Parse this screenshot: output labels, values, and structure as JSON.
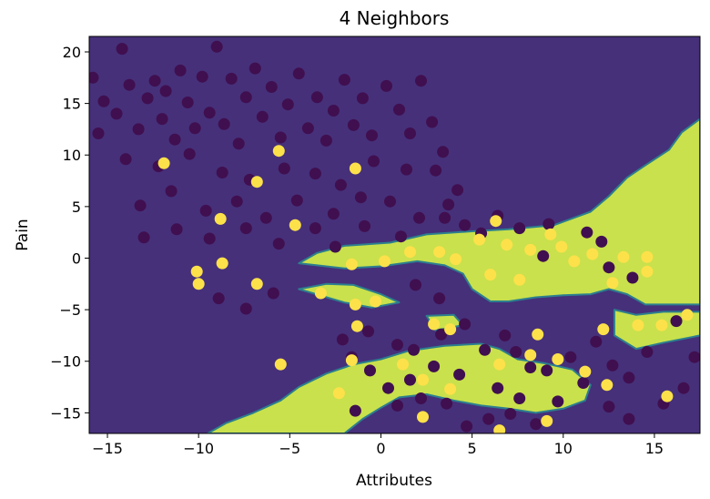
{
  "chart_data": {
    "type": "scatter",
    "title": "4 Neighbors",
    "xlabel": "Attributes",
    "ylabel": "Pain",
    "xlim": [
      -16,
      17.5
    ],
    "ylim": [
      -17,
      21.5
    ],
    "xticks": [
      -15,
      -10,
      -5,
      0,
      5,
      10,
      15
    ],
    "yticks": [
      -15,
      -10,
      -5,
      0,
      5,
      10,
      15,
      20
    ],
    "grid": false,
    "colors": {
      "class_0_region": "#46307a",
      "class_1_region": "#c9e14c",
      "class_0_point": "#400f4f",
      "class_1_point": "#fde14a",
      "boundary": "#2c7f8e"
    },
    "decision_region_class_1": [
      [
        [
          -4.5,
          -0.5
        ],
        [
          -3.5,
          0.5
        ],
        [
          -2,
          1.2
        ],
        [
          0.5,
          1.5
        ],
        [
          2.5,
          2.3
        ],
        [
          5,
          2.6
        ],
        [
          7,
          2.8
        ],
        [
          9.5,
          3.2
        ],
        [
          11.5,
          4.5
        ],
        [
          12.5,
          6
        ],
        [
          13.5,
          7.8
        ],
        [
          14.5,
          9
        ],
        [
          15.8,
          10.5
        ],
        [
          16.5,
          12.2
        ],
        [
          17.5,
          13.5
        ],
        [
          17.5,
          -4.5
        ],
        [
          14.5,
          -4.5
        ],
        [
          13.5,
          -3.5
        ],
        [
          12.5,
          -3
        ],
        [
          11.5,
          -3.5
        ],
        [
          10,
          -3.6
        ],
        [
          8.5,
          -3.8
        ],
        [
          7,
          -4.2
        ],
        [
          6,
          -4.2
        ],
        [
          5,
          -3
        ],
        [
          4.5,
          -1.5
        ],
        [
          3.5,
          -0.7
        ],
        [
          2,
          -0.3
        ],
        [
          0,
          -0.8
        ],
        [
          -2,
          -1
        ],
        [
          -4.5,
          -0.5
        ]
      ],
      [
        [
          -9.5,
          -17
        ],
        [
          -8.5,
          -16
        ],
        [
          -7,
          -15
        ],
        [
          -5.5,
          -13.8
        ],
        [
          -4.5,
          -12.5
        ],
        [
          -3,
          -11.2
        ],
        [
          -1.5,
          -10.3
        ],
        [
          0,
          -9.8
        ],
        [
          1.5,
          -9
        ],
        [
          3.5,
          -8.5
        ],
        [
          5.5,
          -8.3
        ],
        [
          6.5,
          -8.8
        ],
        [
          7.5,
          -9.8
        ],
        [
          9,
          -10.2
        ],
        [
          10.5,
          -10.8
        ],
        [
          11.5,
          -12.3
        ],
        [
          11.2,
          -13.8
        ],
        [
          10,
          -14.6
        ],
        [
          8.5,
          -15
        ],
        [
          7,
          -14.6
        ],
        [
          5.5,
          -14.3
        ],
        [
          4,
          -13.8
        ],
        [
          2.5,
          -13.2
        ],
        [
          1,
          -13.5
        ],
        [
          0,
          -14.5
        ],
        [
          -1,
          -15.6
        ],
        [
          -2,
          -17
        ]
      ],
      [
        [
          -4.5,
          -3
        ],
        [
          -3,
          -2.5
        ],
        [
          -1.5,
          -2.6
        ],
        [
          0,
          -3.5
        ],
        [
          1,
          -4.3
        ],
        [
          -0.5,
          -4.8
        ],
        [
          -2,
          -4.3
        ],
        [
          -4.5,
          -3
        ]
      ],
      [
        [
          12.8,
          -5
        ],
        [
          14,
          -5.5
        ],
        [
          15.5,
          -5.2
        ],
        [
          17.5,
          -5.2
        ],
        [
          17.5,
          -7.5
        ],
        [
          15.5,
          -8.2
        ],
        [
          14,
          -8.8
        ],
        [
          12.8,
          -7.5
        ],
        [
          12.8,
          -5
        ]
      ],
      [
        [
          2.5,
          -5.6
        ],
        [
          4,
          -5.5
        ],
        [
          4.5,
          -6.5
        ],
        [
          3,
          -7
        ],
        [
          2.5,
          -5.6
        ]
      ]
    ],
    "series": [
      {
        "class": 0,
        "points": [
          [
            -15.8,
            17.5
          ],
          [
            -15.2,
            15.2
          ],
          [
            -14.5,
            14
          ],
          [
            -14.2,
            20.3
          ],
          [
            -13.8,
            16.8
          ],
          [
            -13.3,
            12.5
          ],
          [
            -12.8,
            15.5
          ],
          [
            -12.4,
            17.2
          ],
          [
            -12,
            13.5
          ],
          [
            -11.8,
            16.2
          ],
          [
            -11.3,
            11.5
          ],
          [
            -11,
            18.2
          ],
          [
            -10.6,
            15.1
          ],
          [
            -10.2,
            12.6
          ],
          [
            -9.8,
            17.6
          ],
          [
            -9.4,
            14.1
          ],
          [
            -9,
            20.5
          ],
          [
            -8.6,
            13
          ],
          [
            -8.2,
            17.4
          ],
          [
            -7.8,
            11.1
          ],
          [
            -7.4,
            15.6
          ],
          [
            -6.9,
            18.4
          ],
          [
            -6.5,
            13.7
          ],
          [
            -6,
            16.6
          ],
          [
            -5.5,
            11.7
          ],
          [
            -5.1,
            14.9
          ],
          [
            -4.5,
            17.9
          ],
          [
            -4,
            12.6
          ],
          [
            -3.5,
            15.6
          ],
          [
            -3,
            11.4
          ],
          [
            -2.6,
            14.3
          ],
          [
            -2,
            17.3
          ],
          [
            -1.5,
            12.9
          ],
          [
            -1,
            15.5
          ],
          [
            -0.5,
            11.9
          ],
          [
            0.3,
            16.7
          ],
          [
            1,
            14.4
          ],
          [
            1.6,
            12.1
          ],
          [
            2.2,
            17.2
          ],
          [
            2.8,
            13.2
          ],
          [
            3.4,
            10.3
          ],
          [
            -15.5,
            12.1
          ],
          [
            -14,
            9.6
          ],
          [
            -12.2,
            8.9
          ],
          [
            -10.5,
            10.1
          ],
          [
            -8.7,
            8.3
          ],
          [
            -7.2,
            7.6
          ],
          [
            -5.3,
            8.7
          ],
          [
            -3.6,
            8.2
          ],
          [
            -2.2,
            7.1
          ],
          [
            -0.4,
            9.4
          ],
          [
            1.4,
            8.6
          ],
          [
            3,
            8.5
          ],
          [
            4.2,
            6.6
          ],
          [
            -13.2,
            5.1
          ],
          [
            -11.5,
            6.5
          ],
          [
            -9.6,
            4.6
          ],
          [
            -7.9,
            5.5
          ],
          [
            -6.3,
            3.9
          ],
          [
            -4.6,
            5.6
          ],
          [
            -2.6,
            4.3
          ],
          [
            -1.1,
            5.9
          ],
          [
            0.5,
            5.5
          ],
          [
            2.1,
            3.9
          ],
          [
            3.7,
            5.2
          ],
          [
            -13,
            2
          ],
          [
            -11.2,
            2.8
          ],
          [
            -9.4,
            1.9
          ],
          [
            -7.4,
            2.9
          ],
          [
            -5.6,
            1.4
          ],
          [
            -3.6,
            2.9
          ],
          [
            -2.5,
            1.1
          ],
          [
            -0.9,
            3.1
          ],
          [
            1.1,
            2.1
          ],
          [
            -8.9,
            -3.9
          ],
          [
            -7.4,
            -4.9
          ],
          [
            -5.9,
            -3.4
          ],
          [
            1.9,
            -2.6
          ],
          [
            3.2,
            -3.9
          ],
          [
            3.5,
            3.9
          ],
          [
            4.6,
            3.2
          ],
          [
            5.5,
            2.4
          ],
          [
            6.4,
            4.1
          ],
          [
            7.6,
            2.9
          ],
          [
            9.2,
            3.3
          ],
          [
            11.3,
            2.5
          ],
          [
            12.1,
            1.6
          ],
          [
            12.5,
            -0.9
          ],
          [
            13.8,
            -1.9
          ],
          [
            8.9,
            0.2
          ],
          [
            -2.1,
            -7.9
          ],
          [
            -1.6,
            -9.6
          ],
          [
            -0.7,
            -7.1
          ],
          [
            0.9,
            -8.4
          ],
          [
            1.8,
            -8.9
          ],
          [
            3.3,
            -7.4
          ],
          [
            4.6,
            -6.4
          ],
          [
            5.7,
            -8.9
          ],
          [
            6.8,
            -7.5
          ],
          [
            7.4,
            -9.1
          ],
          [
            8.2,
            -10.6
          ],
          [
            9.1,
            -10.9
          ],
          [
            10.4,
            -9.6
          ],
          [
            11.8,
            -8.1
          ],
          [
            12.7,
            -10.4
          ],
          [
            13.6,
            -11.6
          ],
          [
            14.6,
            -9.1
          ],
          [
            16.2,
            -6.1
          ],
          [
            17.2,
            -9.6
          ],
          [
            -1.4,
            -14.8
          ],
          [
            0.9,
            -14.3
          ],
          [
            2.2,
            -13.6
          ],
          [
            3.6,
            -14.1
          ],
          [
            4.7,
            -16.3
          ],
          [
            5.9,
            -15.6
          ],
          [
            7.1,
            -15.1
          ],
          [
            8.5,
            -16.1
          ],
          [
            9.7,
            -13.9
          ],
          [
            11.1,
            -12.1
          ],
          [
            12.5,
            -14.4
          ],
          [
            13.6,
            -15.6
          ],
          [
            15.5,
            -14.1
          ],
          [
            16.6,
            -12.6
          ],
          [
            4.3,
            -11.3
          ],
          [
            2.9,
            -10.5
          ],
          [
            1.6,
            -11.8
          ],
          [
            0.4,
            -12.6
          ],
          [
            -0.6,
            -10.9
          ],
          [
            6.4,
            -12.6
          ],
          [
            7.6,
            -13.6
          ]
        ]
      },
      {
        "class": 1,
        "points": [
          [
            -11.9,
            9.2
          ],
          [
            -6.8,
            7.4
          ],
          [
            -5.6,
            10.4
          ],
          [
            -1.4,
            8.7
          ],
          [
            -8.8,
            3.8
          ],
          [
            -4.7,
            3.2
          ],
          [
            -8.7,
            -0.5
          ],
          [
            -10.1,
            -1.3
          ],
          [
            -10,
            -2.5
          ],
          [
            -6.8,
            -2.5
          ],
          [
            -5.5,
            -10.3
          ],
          [
            1.6,
            0.6
          ],
          [
            3.2,
            0.6
          ],
          [
            6.3,
            3.6
          ],
          [
            5.4,
            1.8
          ],
          [
            6.9,
            1.3
          ],
          [
            8.2,
            0.8
          ],
          [
            9.3,
            2.3
          ],
          [
            9.9,
            1.1
          ],
          [
            10.6,
            -0.3
          ],
          [
            11.6,
            0.4
          ],
          [
            13.3,
            0.1
          ],
          [
            14.6,
            0.1
          ],
          [
            14.6,
            -1.3
          ],
          [
            12.7,
            -2.4
          ],
          [
            6,
            -1.6
          ],
          [
            7.6,
            -2.1
          ],
          [
            -1.4,
            -4.5
          ],
          [
            -0.3,
            -4.2
          ],
          [
            -3.3,
            -3.4
          ],
          [
            -1.3,
            -6.6
          ],
          [
            2.9,
            -6.4
          ],
          [
            3.8,
            -6.9
          ],
          [
            8.6,
            -7.4
          ],
          [
            12.2,
            -6.9
          ],
          [
            14.1,
            -6.5
          ],
          [
            15.4,
            -6.5
          ],
          [
            16.8,
            -5.5
          ],
          [
            -1.6,
            -9.9
          ],
          [
            1.2,
            -10.3
          ],
          [
            2.3,
            -11.8
          ],
          [
            3.8,
            -12.7
          ],
          [
            6.5,
            -10.3
          ],
          [
            8.2,
            -9.4
          ],
          [
            9.7,
            -9.8
          ],
          [
            11.2,
            -11
          ],
          [
            12.4,
            -12.3
          ],
          [
            -2.3,
            -13.1
          ],
          [
            2.3,
            -15.4
          ],
          [
            6.5,
            -16.7
          ],
          [
            9.1,
            -15.8
          ],
          [
            15.7,
            -13.4
          ],
          [
            -1.6,
            -0.6
          ],
          [
            0.2,
            -0.3
          ],
          [
            4.1,
            -0.1
          ]
        ]
      }
    ]
  }
}
